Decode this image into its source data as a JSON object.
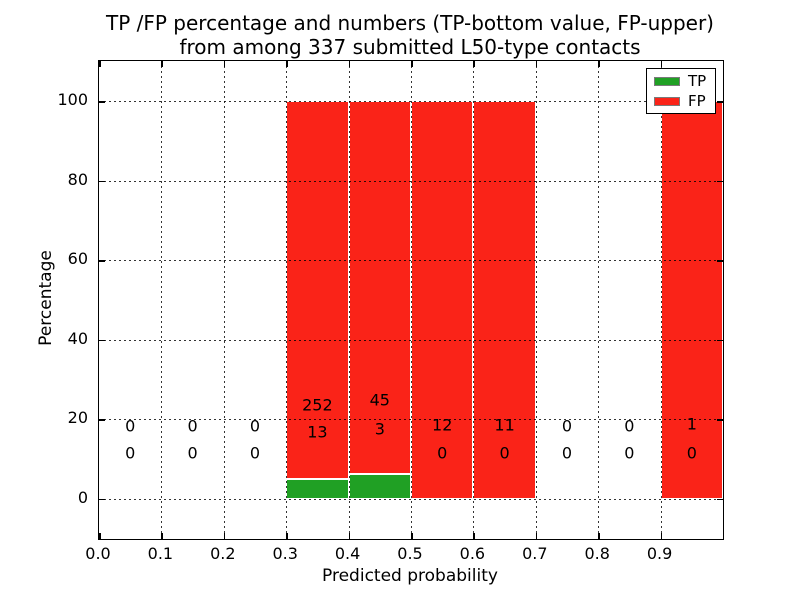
{
  "chart_data": {
    "type": "bar",
    "stacked": true,
    "units": "percent",
    "title_lines": [
      "TP /FP percentage and numbers (TP-bottom value, FP-upper)",
      "from among 337 submitted L50-type contacts"
    ],
    "xlabel": "Predicted probability",
    "ylabel": "Percentage",
    "total_contacts": 337,
    "xlim": [
      0.0,
      1.0
    ],
    "ylim": [
      -10.8,
      110.2
    ],
    "grid": "dotted",
    "x_tick_labels": [
      "0.0",
      "0.1",
      "0.2",
      "0.3",
      "0.4",
      "0.5",
      "0.6",
      "0.7",
      "0.8",
      "0.9"
    ],
    "y_tick_labels": [
      "0",
      "20",
      "40",
      "60",
      "80",
      "100"
    ],
    "y_tick_values": [
      0,
      20,
      40,
      60,
      80,
      100
    ],
    "legend": {
      "position": "upper right",
      "entries": [
        {
          "label": "TP",
          "color": "#20a024"
        },
        {
          "label": "FP",
          "color": "#fa2318"
        }
      ]
    },
    "colors": {
      "tp": "#20a024",
      "fp": "#fa2318",
      "bar_edge": "#ffffff",
      "grid": "#000000"
    },
    "series": [
      {
        "name": "TP",
        "values": [
          0,
          0,
          0,
          13,
          3,
          0,
          0,
          0,
          0,
          0
        ]
      },
      {
        "name": "FP",
        "values": [
          0,
          0,
          0,
          252,
          45,
          12,
          11,
          0,
          0,
          1
        ]
      }
    ],
    "bins": [
      {
        "range": [
          0.0,
          0.1
        ],
        "tp": 0,
        "fp": 0,
        "tp_pct": 0,
        "fp_pct": 0,
        "fp_label_y": 425,
        "tp_label_y": 452
      },
      {
        "range": [
          0.1,
          0.2
        ],
        "tp": 0,
        "fp": 0,
        "tp_pct": 0,
        "fp_pct": 0,
        "fp_label_y": 425,
        "tp_label_y": 452
      },
      {
        "range": [
          0.2,
          0.3
        ],
        "tp": 0,
        "fp": 0,
        "tp_pct": 0,
        "fp_pct": 0,
        "fp_label_y": 425,
        "tp_label_y": 452
      },
      {
        "range": [
          0.3,
          0.4
        ],
        "tp": 13,
        "fp": 252,
        "tp_pct": 4.91,
        "fp_pct": 95.09,
        "fp_label_y": 404,
        "tp_label_y": 431
      },
      {
        "range": [
          0.4,
          0.5
        ],
        "tp": 3,
        "fp": 45,
        "tp_pct": 6.25,
        "fp_pct": 93.75,
        "fp_label_y": 399,
        "tp_label_y": 428
      },
      {
        "range": [
          0.5,
          0.6
        ],
        "tp": 0,
        "fp": 12,
        "tp_pct": 0,
        "fp_pct": 100,
        "fp_label_y": 424,
        "tp_label_y": 452
      },
      {
        "range": [
          0.6,
          0.7
        ],
        "tp": 0,
        "fp": 11,
        "tp_pct": 0,
        "fp_pct": 100,
        "fp_label_y": 424,
        "tp_label_y": 452
      },
      {
        "range": [
          0.7,
          0.8
        ],
        "tp": 0,
        "fp": 0,
        "tp_pct": 0,
        "fp_pct": 0,
        "fp_label_y": 425,
        "tp_label_y": 452
      },
      {
        "range": [
          0.8,
          0.9
        ],
        "tp": 0,
        "fp": 0,
        "tp_pct": 0,
        "fp_pct": 0,
        "fp_label_y": 425,
        "tp_label_y": 452
      },
      {
        "range": [
          0.9,
          1.0
        ],
        "tp": 0,
        "fp": 1,
        "tp_pct": 0,
        "fp_pct": 100,
        "fp_label_y": 423,
        "tp_label_y": 452
      }
    ]
  }
}
